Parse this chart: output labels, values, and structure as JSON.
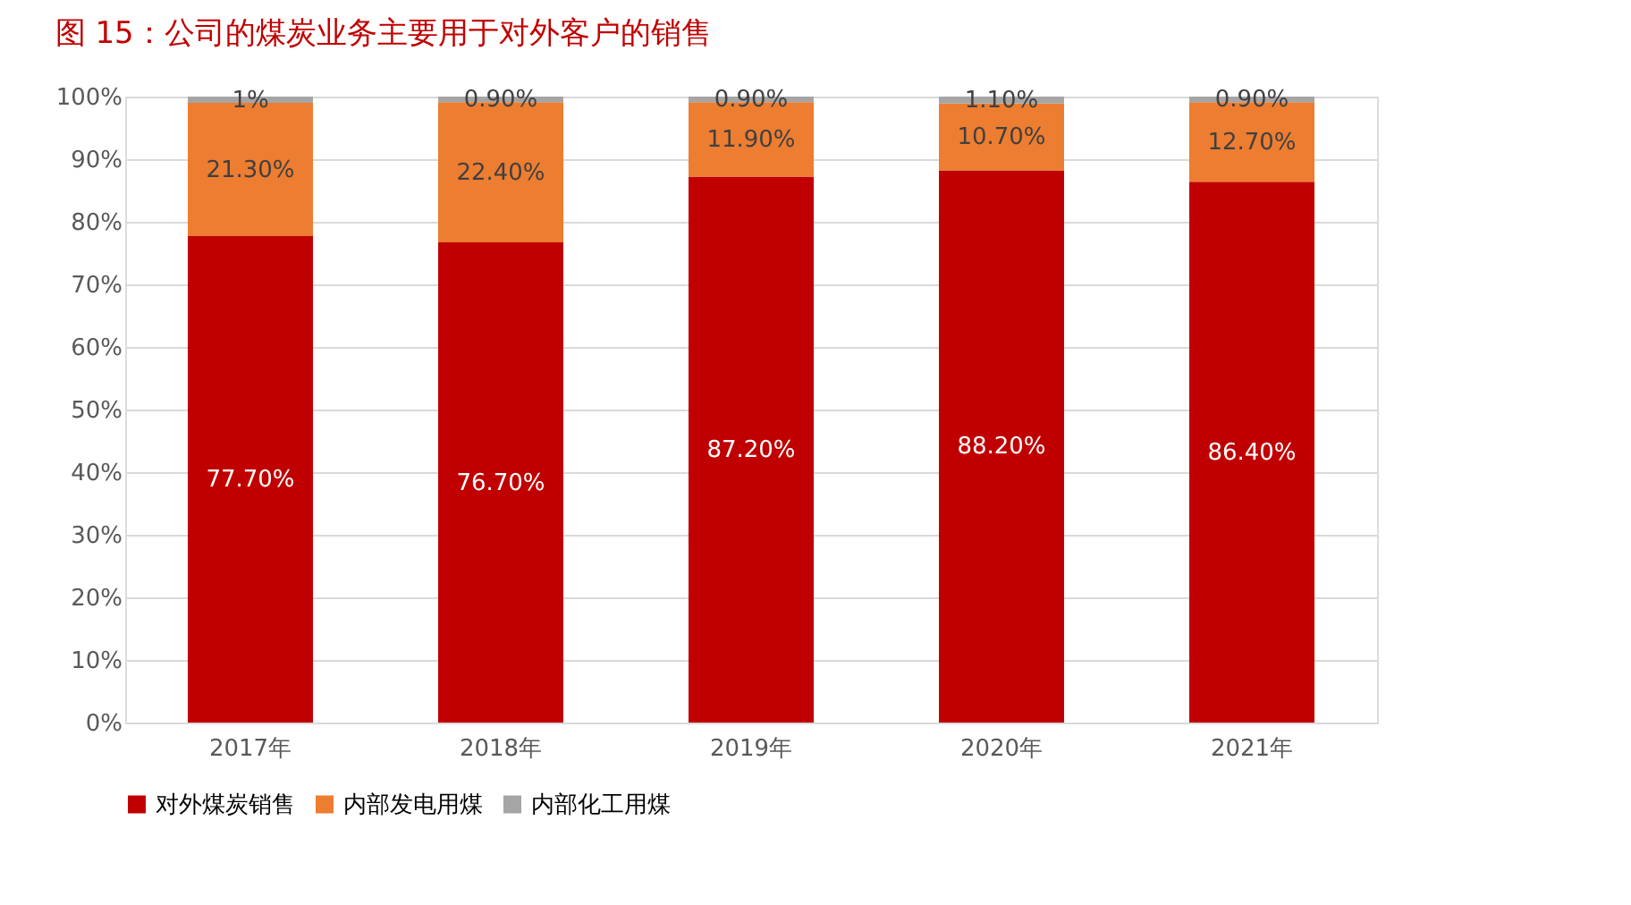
{
  "chart_data": {
    "type": "bar",
    "title": "图 15：公司的煤炭业务主要用于对外客户的销售",
    "categories": [
      "2017年",
      "2018年",
      "2019年",
      "2020年",
      "2021年"
    ],
    "stacked": true,
    "series": [
      {
        "name": "对外煤炭销售",
        "color": "#c00000",
        "values": [
          77.7,
          76.7,
          87.2,
          88.2,
          86.4
        ],
        "value_labels": [
          "77.70%",
          "76.70%",
          "87.20%",
          "88.20%",
          "86.40%"
        ]
      },
      {
        "name": "内部发电用煤",
        "color": "#ed7d31",
        "values": [
          21.3,
          22.4,
          11.9,
          10.7,
          12.7
        ],
        "value_labels": [
          "21.30%",
          "22.40%",
          "11.90%",
          "10.70%",
          "12.70%"
        ]
      },
      {
        "name": "内部化工用煤",
        "color": "#a5a5a5",
        "values": [
          1,
          0.9,
          0.9,
          1.1,
          0.9
        ],
        "value_labels": [
          "1%",
          "0.90%",
          "0.90%",
          "1.10%",
          "0.90%"
        ]
      }
    ],
    "ylim": [
      0,
      100
    ],
    "yticks": [
      {
        "value": 0,
        "label": "0%"
      },
      {
        "value": 10,
        "label": "10%"
      },
      {
        "value": 20,
        "label": "20%"
      },
      {
        "value": 30,
        "label": "30%"
      },
      {
        "value": 40,
        "label": "40%"
      },
      {
        "value": 50,
        "label": "50%"
      },
      {
        "value": 60,
        "label": "60%"
      },
      {
        "value": 70,
        "label": "70%"
      },
      {
        "value": 80,
        "label": "80%"
      },
      {
        "value": 90,
        "label": "90%"
      },
      {
        "value": 100,
        "label": "100%"
      }
    ],
    "grid": "y",
    "legend": "bottom"
  }
}
